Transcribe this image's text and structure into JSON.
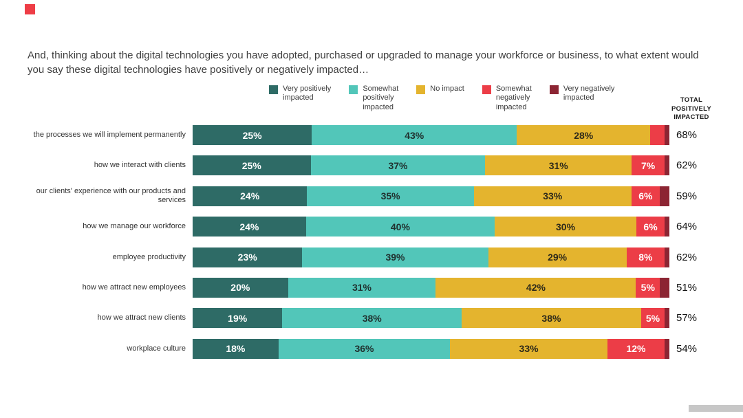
{
  "page": {
    "title": "And, thinking about the digital technologies you have adopted, purchased or upgraded to manage your workforce or business, to what extent would you say these digital technologies have positively or negatively impacted…",
    "accent_color": "#ee3d46"
  },
  "chart_data": {
    "type": "bar",
    "orientation": "horizontal",
    "stacked": true,
    "units": "percent",
    "label_min_value": 5,
    "total_header": "TOTAL POSITIVELY IMPACTED",
    "legend": [
      {
        "key": "very-positively-impacted",
        "label": "Very positively\nimpacted",
        "color": "#2e6b66",
        "text_color": "#ffffff"
      },
      {
        "key": "somewhat-positively-impacted",
        "label": "Somewhat\npositively\nimpacted",
        "color": "#52c6b9",
        "text_color": "#20312f"
      },
      {
        "key": "no-impact",
        "label": "No impact",
        "color": "#e4b42e",
        "text_color": "#2e2a1a"
      },
      {
        "key": "somewhat-negatively-impacted",
        "label": "Somewhat\nnegatively\nimpacted",
        "color": "#ec3d47",
        "text_color": "#ffffff"
      },
      {
        "key": "very-negatively-impacted",
        "label": "Very negatively\nimpacted",
        "color": "#8c2533",
        "text_color": "#ffffff"
      }
    ],
    "rows": [
      {
        "label": "the processes we will implement permanently",
        "values": [
          25,
          43,
          28,
          3,
          1
        ],
        "total": "68%"
      },
      {
        "label": "how we interact with clients",
        "values": [
          25,
          37,
          31,
          7,
          1
        ],
        "total": "62%"
      },
      {
        "label": "our clients' experience with our products and services",
        "values": [
          24,
          35,
          33,
          6,
          2
        ],
        "total": "59%"
      },
      {
        "label": "how we manage our workforce",
        "values": [
          24,
          40,
          30,
          6,
          1
        ],
        "total": "64%"
      },
      {
        "label": "employee productivity",
        "values": [
          23,
          39,
          29,
          8,
          1
        ],
        "total": "62%"
      },
      {
        "label": "how we attract new employees",
        "values": [
          20,
          31,
          42,
          5,
          2
        ],
        "total": "51%"
      },
      {
        "label": "how we attract new clients",
        "values": [
          19,
          38,
          38,
          5,
          1
        ],
        "total": "57%"
      },
      {
        "label": "workplace culture",
        "values": [
          18,
          36,
          33,
          12,
          1
        ],
        "total": "54%"
      }
    ]
  }
}
